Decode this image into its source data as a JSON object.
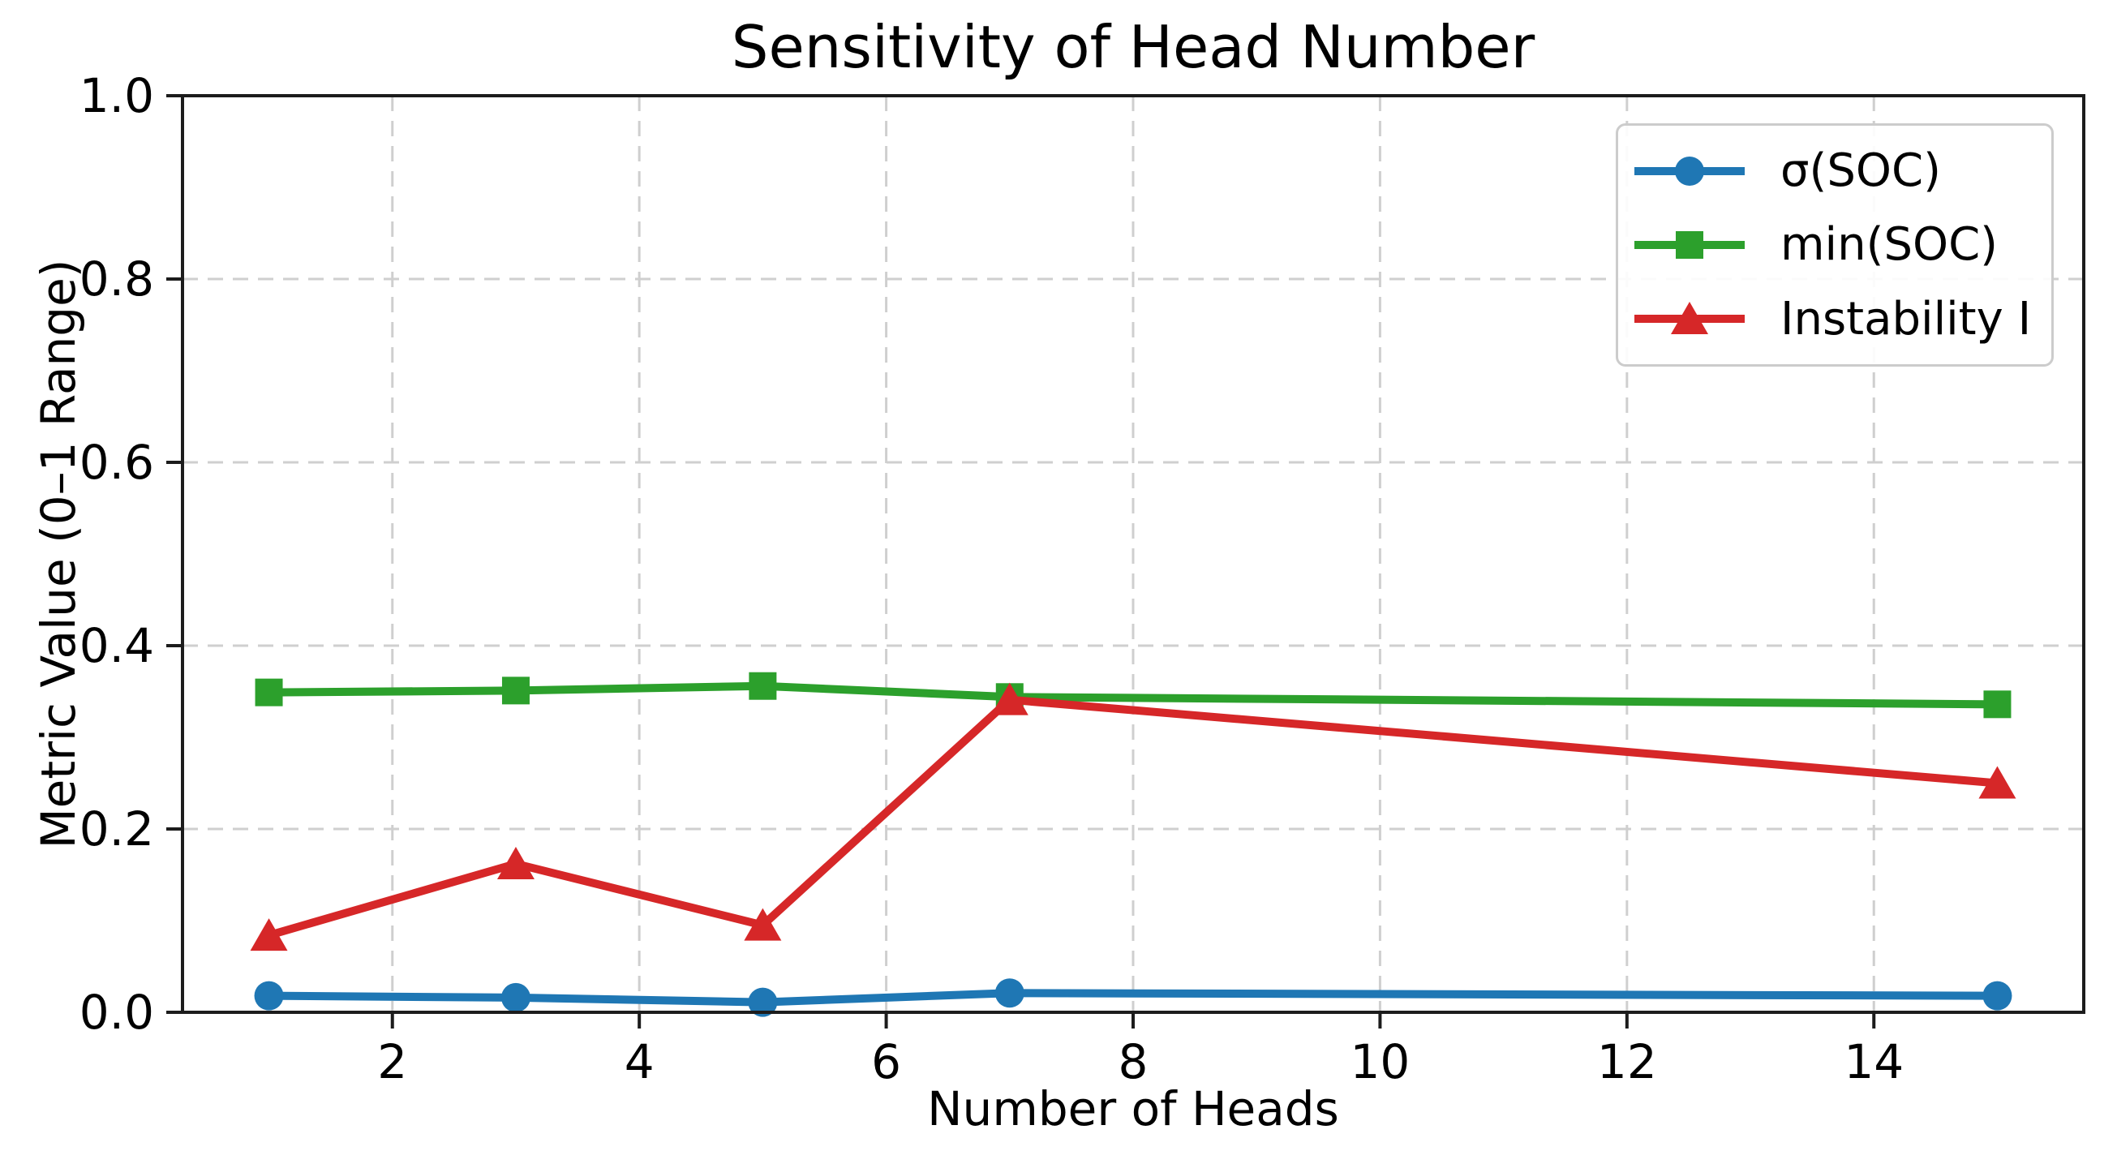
{
  "chart_data": {
    "type": "line",
    "title": "Sensitivity of Head Number",
    "xlabel": "Number of Heads",
    "ylabel": "Metric Value (0–1 Range)",
    "x": [
      1,
      3,
      5,
      7,
      15
    ],
    "series": [
      {
        "name": "σ(SOC)",
        "color": "#1f77b4",
        "marker": "circle",
        "values": [
          0.018,
          0.016,
          0.011,
          0.021,
          0.018
        ]
      },
      {
        "name": "min(SOC)",
        "color": "#2ca02c",
        "marker": "square",
        "values": [
          0.349,
          0.351,
          0.356,
          0.344,
          0.336
        ]
      },
      {
        "name": "Instability I",
        "color": "#d62728",
        "marker": "triangle",
        "values": [
          0.084,
          0.162,
          0.095,
          0.341,
          0.25
        ]
      }
    ],
    "xlim": [
      0.3,
      15.7
    ],
    "ylim": [
      0.0,
      1.0
    ],
    "xticks": [
      "2",
      "4",
      "6",
      "8",
      "10",
      "12",
      "14"
    ],
    "yticks": [
      "0.0",
      "0.2",
      "0.4",
      "0.6",
      "0.8",
      "1.0"
    ],
    "grid": true,
    "grid_style": "dashed",
    "legend_position": "upper right",
    "colors": {
      "grid": "#cfcfcf",
      "spine": "#1c1c1c",
      "background": "#ffffff",
      "legend_border": "#cccccc",
      "text": "#000000"
    }
  }
}
